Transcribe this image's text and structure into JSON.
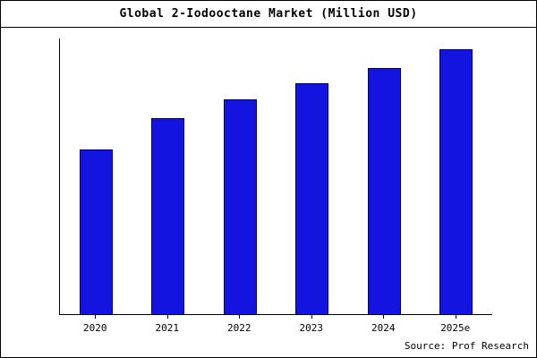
{
  "title": "Global 2-Iodooctane Market (Million USD)",
  "source": "Source: Prof Research",
  "chart_data": {
    "type": "bar",
    "title": "Global 2-Iodooctane Market (Million USD)",
    "categories": [
      "2020",
      "2021",
      "2022",
      "2023",
      "2024",
      "2025e"
    ],
    "values": [
      62,
      74,
      81,
      87,
      93,
      100
    ],
    "xlabel": "",
    "ylabel": "",
    "ylim": [
      0,
      104
    ],
    "grid": false,
    "legend_position": "none",
    "bar_color": "#1414e0",
    "bar_border_color": "#000060",
    "axis_color": "#000000",
    "source_note": "Source: Prof Research"
  }
}
